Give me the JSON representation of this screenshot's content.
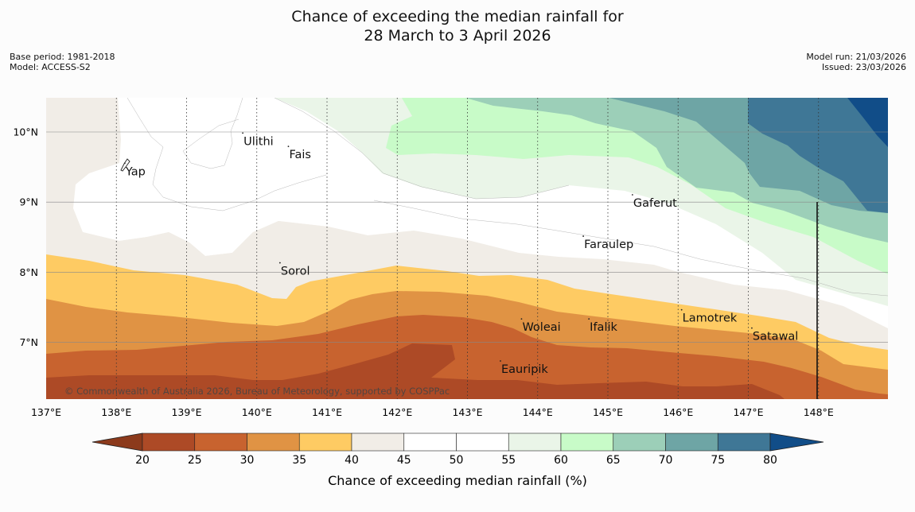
{
  "title": {
    "line1": "Chance of exceeding the median rainfall for",
    "line2": "28 March to 3 April 2026"
  },
  "meta_left": {
    "base_period": "Base period: 1981-2018",
    "model": "Model: ACCESS-S2"
  },
  "meta_right": {
    "model_run": "Model run: 21/03/2026",
    "issued": "Issued: 23/03/2026"
  },
  "map": {
    "lon_labels": [
      "137°E",
      "138°E",
      "139°E",
      "140°E",
      "141°E",
      "142°E",
      "143°E",
      "144°E",
      "145°E",
      "146°E",
      "147°E",
      "148°E"
    ],
    "lat_labels": [
      "10°N",
      "9°N",
      "8°N",
      "7°N"
    ],
    "places": [
      {
        "name": "Ulithi",
        "lon": 139.8,
        "lat": 9.95
      },
      {
        "name": "Fais",
        "lon": 140.45,
        "lat": 9.76
      },
      {
        "name": "Yap",
        "lon": 138.12,
        "lat": 9.52
      },
      {
        "name": "Gaferut",
        "lon": 145.35,
        "lat": 9.07
      },
      {
        "name": "Faraulep",
        "lon": 144.65,
        "lat": 8.48
      },
      {
        "name": "Sorol",
        "lon": 140.33,
        "lat": 8.1
      },
      {
        "name": "Lamotrek",
        "lon": 146.05,
        "lat": 7.43
      },
      {
        "name": "Woleai",
        "lon": 143.77,
        "lat": 7.3
      },
      {
        "name": "Ifalik",
        "lon": 144.73,
        "lat": 7.3
      },
      {
        "name": "Satawal",
        "lon": 147.05,
        "lat": 7.17
      },
      {
        "name": "Eauripik",
        "lon": 143.47,
        "lat": 6.7
      }
    ],
    "copyright": "© Commonwealth of Australia 2026, Bureau of Meteorology, supported by COSPPac"
  },
  "legend": {
    "ticks": [
      "20",
      "25",
      "30",
      "35",
      "40",
      "45",
      "50",
      "55",
      "60",
      "65",
      "70",
      "75",
      "80"
    ],
    "label": "Chance of exceeding median rainfall (%)",
    "colors": {
      "below_20": "#8c3a1c",
      "20_25": "#ad4a26",
      "25_30": "#c8632f",
      "30_35": "#e09344",
      "35_40": "#fecb63",
      "40_45": "#f1ede7",
      "45_50": "#ffffff",
      "50_55": "#ffffff",
      "55_60": "#eaf5e8",
      "60_65": "#c8fbc8",
      "65_70": "#9ccfb8",
      "70_75": "#6ea5a5",
      "75_80": "#3f7796",
      "above_80": "#114d88"
    }
  }
}
